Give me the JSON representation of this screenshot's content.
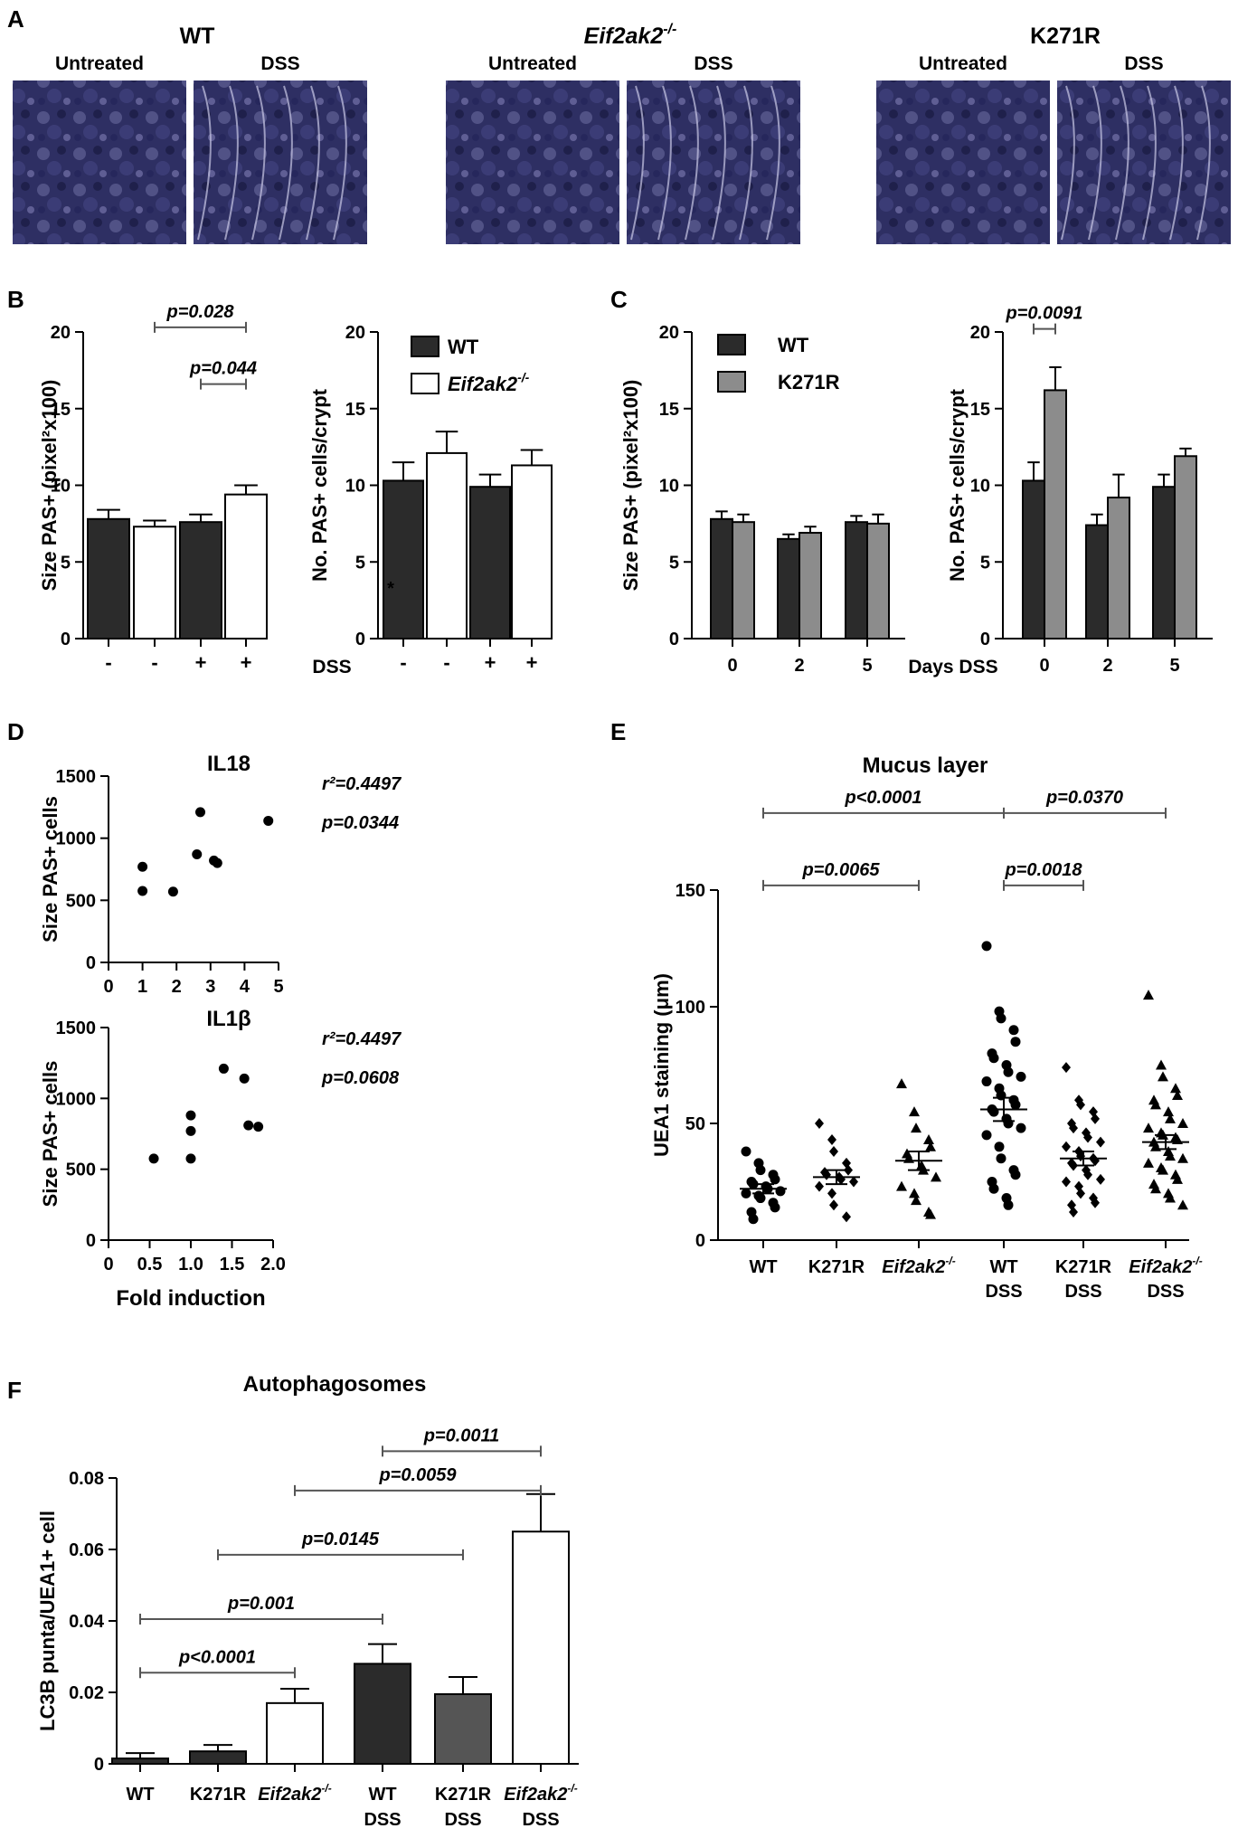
{
  "panels": {
    "A": {
      "letter": "A",
      "groups": [
        {
          "title": "WT",
          "italic": false,
          "sup": "",
          "untreated": "Untreated",
          "dss": "DSS"
        },
        {
          "title": "Eif2ak2",
          "italic": true,
          "sup": "-/-",
          "untreated": "Untreated",
          "dss": "DSS"
        },
        {
          "title": "K271R",
          "italic": false,
          "sup": "",
          "untreated": "Untreated",
          "dss": "DSS"
        }
      ]
    },
    "B": {
      "letter": "B",
      "dss_label": "DSS"
    },
    "C": {
      "letter": "C",
      "days_label": "Days DSS"
    },
    "D": {
      "letter": "D"
    },
    "E": {
      "letter": "E"
    },
    "F": {
      "letter": "F"
    }
  },
  "colors": {
    "wt": "#2b2b2b",
    "k271r": "#8c8c8c",
    "eif": "#ffffff",
    "f_k271r_dss": "#555555",
    "tissue": "#2e2f63"
  },
  "chart_data": [
    {
      "id": "B1",
      "type": "bar",
      "ylabel": "Size PAS+ (pixel²x100)",
      "ylim": [
        0,
        20
      ],
      "yticks": [
        0,
        5,
        10,
        15,
        20
      ],
      "categories": [
        "-",
        "-",
        "+",
        "+"
      ],
      "bar_groups": [
        "WT",
        "Eif2ak2-/-",
        "WT",
        "Eif2ak2-/-"
      ],
      "values": [
        7.8,
        7.3,
        7.6,
        9.4
      ],
      "errors": [
        0.6,
        0.4,
        0.5,
        0.6
      ],
      "annotations": [
        {
          "text": "p=0.028",
          "from": 1,
          "to": 3,
          "y": 20.3
        },
        {
          "text": "p=0.044",
          "from": 2,
          "to": 3,
          "y": 16.6
        }
      ]
    },
    {
      "id": "B2",
      "type": "bar",
      "ylabel": "No. PAS+ cells/crypt",
      "ylim": [
        0,
        20
      ],
      "yticks": [
        0,
        5,
        10,
        15,
        20
      ],
      "categories": [
        "-",
        "-",
        "+",
        "+"
      ],
      "bar_groups": [
        "WT",
        "Eif2ak2-/-",
        "WT",
        "Eif2ak2-/-"
      ],
      "values": [
        10.3,
        12.1,
        9.9,
        11.3
      ],
      "errors": [
        1.2,
        1.4,
        0.8,
        1.0
      ],
      "legend": [
        {
          "label": "WT",
          "italic": false,
          "sup": ""
        },
        {
          "label": "Eif2ak2",
          "italic": true,
          "sup": "-/-"
        }
      ],
      "asterisk": "*"
    },
    {
      "id": "C1",
      "type": "bar",
      "ylabel": "Size PAS+ (pixel²x100)",
      "ylim": [
        0,
        20
      ],
      "yticks": [
        0,
        5,
        10,
        15,
        20
      ],
      "categories": [
        "0",
        "2",
        "5"
      ],
      "series": [
        {
          "name": "WT",
          "values": [
            7.8,
            6.5,
            7.6
          ],
          "errors": [
            0.5,
            0.3,
            0.4
          ]
        },
        {
          "name": "K271R",
          "values": [
            7.6,
            6.9,
            7.5
          ],
          "errors": [
            0.5,
            0.4,
            0.6
          ]
        }
      ],
      "legend": [
        {
          "label": "WT"
        },
        {
          "label": "K271R"
        }
      ]
    },
    {
      "id": "C2",
      "type": "bar",
      "ylabel": "No. PAS+ cells/crypt",
      "ylim": [
        0,
        20
      ],
      "yticks": [
        0,
        5,
        10,
        15,
        20
      ],
      "categories": [
        "0",
        "2",
        "5"
      ],
      "series": [
        {
          "name": "WT",
          "values": [
            10.3,
            7.4,
            9.9
          ],
          "errors": [
            1.2,
            0.7,
            0.8
          ]
        },
        {
          "name": "K271R",
          "values": [
            16.2,
            9.2,
            11.9
          ],
          "errors": [
            1.5,
            1.5,
            0.5
          ]
        }
      ],
      "annotations": [
        {
          "text": "p=0.0091",
          "from": 0,
          "to": 1,
          "y": 20.2
        }
      ]
    },
    {
      "id": "D1",
      "type": "scatter",
      "title": "IL18",
      "ylabel": "Size PAS+ cells",
      "xlim": [
        0,
        5
      ],
      "xticks": [
        0,
        1,
        2,
        3,
        4,
        5
      ],
      "ylim": [
        0,
        1500
      ],
      "yticks": [
        0,
        500,
        1000,
        1500
      ],
      "x": [
        1.0,
        1.0,
        1.9,
        2.6,
        2.7,
        3.1,
        3.2,
        4.7
      ],
      "y": [
        770,
        575,
        570,
        870,
        1210,
        820,
        800,
        1140
      ],
      "stats": [
        "r²=0.4497",
        "p=0.0344"
      ]
    },
    {
      "id": "D2",
      "type": "scatter",
      "title": "IL1β",
      "ylabel": "Size PAS+ cells",
      "xlabel": "Fold induction",
      "xlim": [
        0,
        2
      ],
      "xticks": [
        "0",
        "0.5",
        "1.0",
        "1.5",
        "2.0"
      ],
      "ylim": [
        0,
        1500
      ],
      "yticks": [
        0,
        500,
        1000,
        1500
      ],
      "x": [
        0.55,
        1.0,
        1.0,
        1.0,
        1.4,
        1.65,
        1.7,
        1.82
      ],
      "y": [
        575,
        880,
        770,
        575,
        1210,
        1140,
        810,
        800
      ],
      "stats": [
        "r²=0.4497",
        "p=0.0608"
      ]
    },
    {
      "id": "E",
      "type": "scatter",
      "title": "Mucus layer",
      "ylabel": "UEA1 staining (μm)",
      "ylim": [
        0,
        150
      ],
      "yticks": [
        0,
        50,
        100,
        150
      ],
      "categories": [
        {
          "line1": "WT",
          "line2": "",
          "italic": false,
          "sup": ""
        },
        {
          "line1": "K271R",
          "line2": "",
          "italic": false,
          "sup": ""
        },
        {
          "line1": "Eif2ak2",
          "line2": "",
          "italic": true,
          "sup": "-/-"
        },
        {
          "line1": "WT",
          "line2": "DSS",
          "italic": false,
          "sup": ""
        },
        {
          "line1": "K271R",
          "line2": "DSS",
          "italic": false,
          "sup": ""
        },
        {
          "line1": "Eif2ak2",
          "line2": "DSS",
          "italic": true,
          "sup": "-/-"
        }
      ],
      "markers": [
        "circle",
        "diamond",
        "triangle",
        "circle",
        "diamond",
        "triangle"
      ],
      "means": [
        22,
        27,
        34,
        56,
        35,
        42
      ],
      "sems": [
        2,
        3,
        4,
        5,
        3,
        3
      ],
      "points": [
        [
          38,
          33,
          30,
          28,
          26,
          25,
          24,
          23,
          22,
          21,
          20,
          19,
          18,
          16,
          14,
          12,
          9
        ],
        [
          50,
          43,
          38,
          33,
          30,
          29,
          28,
          27,
          26,
          25,
          23,
          20,
          15,
          10
        ],
        [
          67,
          55,
          48,
          43,
          40,
          37,
          35,
          32,
          30,
          27,
          23,
          20,
          17,
          12,
          11
        ],
        [
          126,
          98,
          95,
          90,
          85,
          80,
          78,
          75,
          72,
          70,
          68,
          65,
          62,
          60,
          58,
          56,
          55,
          52,
          50,
          48,
          45,
          40,
          35,
          30,
          28,
          25,
          22,
          18,
          15
        ],
        [
          74,
          60,
          58,
          55,
          52,
          50,
          48,
          46,
          44,
          42,
          40,
          38,
          36,
          35,
          34,
          33,
          32,
          30,
          28,
          26,
          25,
          23,
          20,
          18,
          16,
          15,
          12
        ],
        [
          105,
          75,
          70,
          65,
          62,
          60,
          58,
          55,
          52,
          50,
          48,
          46,
          45,
          44,
          43,
          42,
          40,
          38,
          36,
          35,
          33,
          31,
          30,
          28,
          26,
          24,
          22,
          20,
          18,
          15
        ]
      ],
      "annotations": [
        {
          "text": "p<0.0001",
          "from": 0,
          "to": 3,
          "y": 183
        },
        {
          "text": "p=0.0370",
          "from": 3,
          "to": 5,
          "y": 183
        },
        {
          "text": "p=0.0065",
          "from": 0,
          "to": 2,
          "y": 152
        },
        {
          "text": "p=0.0018",
          "from": 3,
          "to": 4,
          "y": 152
        }
      ]
    },
    {
      "id": "F",
      "type": "bar",
      "title": "Autophagosomes",
      "ylabel": "LC3B punta/UEA1+ cell",
      "ylim": [
        0,
        0.08
      ],
      "yticks": [
        "0",
        "0.02",
        "0.04",
        "0.06",
        "0.08"
      ],
      "categories": [
        {
          "line1": "WT",
          "line2": "",
          "italic": false,
          "sup": ""
        },
        {
          "line1": "K271R",
          "line2": "",
          "italic": false,
          "sup": ""
        },
        {
          "line1": "Eif2ak2",
          "line2": "",
          "italic": true,
          "sup": "-/-"
        },
        {
          "line1": "WT",
          "line2": "DSS",
          "italic": false,
          "sup": ""
        },
        {
          "line1": "K271R",
          "line2": "DSS",
          "italic": false,
          "sup": ""
        },
        {
          "line1": "Eif2ak2",
          "line2": "DSS",
          "italic": true,
          "sup": "-/-"
        }
      ],
      "bar_colors": [
        "#2b2b2b",
        "#2b2b2b",
        "#ffffff",
        "#2b2b2b",
        "#555555",
        "#ffffff"
      ],
      "values": [
        0.0015,
        0.0035,
        0.017,
        0.028,
        0.0195,
        0.065
      ],
      "errors": [
        0.0015,
        0.0018,
        0.004,
        0.0055,
        0.0048,
        0.0105
      ],
      "annotations": [
        {
          "text": "p=0.0011",
          "from": 3,
          "to": 5,
          "y": 0.0875
        },
        {
          "text": "p=0.0059",
          "from": 2,
          "to": 5,
          "y": 0.0765
        },
        {
          "text": "p=0.0145",
          "from": 1,
          "to": 4,
          "y": 0.0585
        },
        {
          "text": "p=0.001",
          "from": 0,
          "to": 3,
          "y": 0.0405
        },
        {
          "text": "p<0.0001",
          "from": 0,
          "to": 2,
          "y": 0.0255
        }
      ]
    }
  ]
}
